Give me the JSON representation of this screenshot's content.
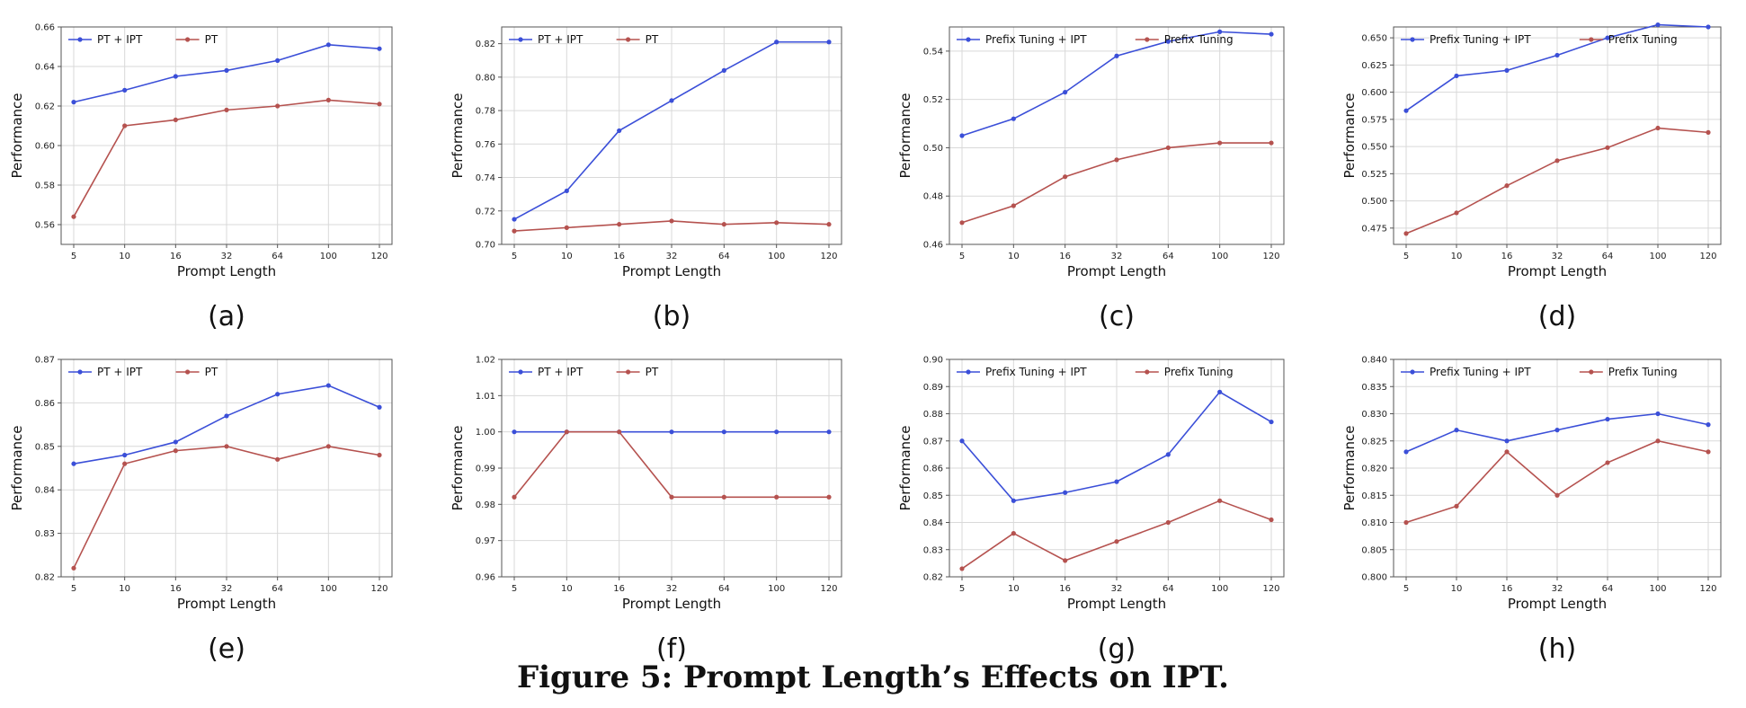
{
  "figure": {
    "caption": "Figure 5: Prompt Length’s Effects on IPT."
  },
  "colors": {
    "blue": "#3b4fd8",
    "red": "#b5524f",
    "grid": "#d9d9d9",
    "frame": "#555555"
  },
  "chart_data": [
    {
      "type": "line",
      "panel_label": "(a)",
      "categories": [
        "5",
        "10",
        "16",
        "32",
        "64",
        "100",
        "120"
      ],
      "xlabel": "Prompt Length",
      "ylabel": "Performance",
      "ylim": [
        0.55,
        0.66
      ],
      "yticks": [
        "0.56",
        "0.58",
        "0.60",
        "0.62",
        "0.64",
        "0.66"
      ],
      "legend": "top-left",
      "grid": true,
      "series": [
        {
          "name": "PT + IPT",
          "color": "#3b4fd8",
          "values": [
            0.622,
            0.628,
            0.635,
            0.638,
            0.643,
            0.651,
            0.649
          ]
        },
        {
          "name": "PT",
          "color": "#b5524f",
          "values": [
            0.564,
            0.61,
            0.613,
            0.618,
            0.62,
            0.623,
            0.621
          ]
        }
      ]
    },
    {
      "type": "line",
      "panel_label": "(b)",
      "categories": [
        "5",
        "10",
        "16",
        "32",
        "64",
        "100",
        "120"
      ],
      "xlabel": "Prompt Length",
      "ylabel": "Performance",
      "ylim": [
        0.7,
        0.83
      ],
      "yticks": [
        "0.70",
        "0.72",
        "0.74",
        "0.76",
        "0.78",
        "0.80",
        "0.82"
      ],
      "legend": "top-left",
      "grid": true,
      "series": [
        {
          "name": "PT + IPT",
          "color": "#3b4fd8",
          "values": [
            0.715,
            0.732,
            0.768,
            0.786,
            0.804,
            0.821,
            0.821
          ]
        },
        {
          "name": "PT",
          "color": "#b5524f",
          "values": [
            0.708,
            0.71,
            0.712,
            0.714,
            0.712,
            0.713,
            0.712
          ]
        }
      ]
    },
    {
      "type": "line",
      "panel_label": "(c)",
      "categories": [
        "5",
        "10",
        "16",
        "32",
        "64",
        "100",
        "120"
      ],
      "xlabel": "Prompt Length",
      "ylabel": "Performance",
      "ylim": [
        0.46,
        0.55
      ],
      "yticks": [
        "0.46",
        "0.48",
        "0.50",
        "0.52",
        "0.54"
      ],
      "legend": "top-left",
      "grid": true,
      "series": [
        {
          "name": "Prefix Tuning + IPT",
          "color": "#3b4fd8",
          "values": [
            0.505,
            0.512,
            0.523,
            0.538,
            0.544,
            0.548,
            0.547
          ]
        },
        {
          "name": "Prefix Tuning",
          "color": "#b5524f",
          "values": [
            0.469,
            0.476,
            0.488,
            0.495,
            0.5,
            0.502,
            0.502
          ]
        }
      ]
    },
    {
      "type": "line",
      "panel_label": "(d)",
      "categories": [
        "5",
        "10",
        "16",
        "32",
        "64",
        "100",
        "120"
      ],
      "xlabel": "Prompt Length",
      "ylabel": "Performance",
      "ylim": [
        0.46,
        0.66
      ],
      "yticks": [
        "0.475",
        "0.500",
        "0.525",
        "0.550",
        "0.575",
        "0.600",
        "0.625",
        "0.650"
      ],
      "legend": "top-left",
      "grid": true,
      "series": [
        {
          "name": "Prefix Tuning + IPT",
          "color": "#3b4fd8",
          "values": [
            0.583,
            0.615,
            0.62,
            0.634,
            0.65,
            0.662,
            0.66
          ]
        },
        {
          "name": "Prefix Tuning",
          "color": "#b5524f",
          "values": [
            0.47,
            0.489,
            0.514,
            0.537,
            0.549,
            0.567,
            0.563
          ]
        }
      ]
    },
    {
      "type": "line",
      "panel_label": "(e)",
      "categories": [
        "5",
        "10",
        "16",
        "32",
        "64",
        "100",
        "120"
      ],
      "xlabel": "Prompt Length",
      "ylabel": "Performance",
      "ylim": [
        0.82,
        0.87
      ],
      "yticks": [
        "0.82",
        "0.83",
        "0.84",
        "0.85",
        "0.86",
        "0.87"
      ],
      "legend": "top-left",
      "grid": true,
      "series": [
        {
          "name": "PT + IPT",
          "color": "#3b4fd8",
          "values": [
            0.846,
            0.848,
            0.851,
            0.857,
            0.862,
            0.864,
            0.859
          ]
        },
        {
          "name": "PT",
          "color": "#b5524f",
          "values": [
            0.822,
            0.846,
            0.849,
            0.85,
            0.847,
            0.85,
            0.848
          ]
        }
      ]
    },
    {
      "type": "line",
      "panel_label": "(f)",
      "categories": [
        "5",
        "10",
        "16",
        "32",
        "64",
        "100",
        "120"
      ],
      "xlabel": "Prompt Length",
      "ylabel": "Performance",
      "ylim": [
        0.96,
        1.02
      ],
      "yticks": [
        "0.96",
        "0.97",
        "0.98",
        "0.99",
        "1.00",
        "1.01",
        "1.02"
      ],
      "legend": "top-left",
      "grid": true,
      "series": [
        {
          "name": "PT + IPT",
          "color": "#3b4fd8",
          "values": [
            1.0,
            1.0,
            1.0,
            1.0,
            1.0,
            1.0,
            1.0
          ]
        },
        {
          "name": "PT",
          "color": "#b5524f",
          "values": [
            0.982,
            1.0,
            1.0,
            0.982,
            0.982,
            0.982,
            0.982
          ]
        }
      ]
    },
    {
      "type": "line",
      "panel_label": "(g)",
      "categories": [
        "5",
        "10",
        "16",
        "32",
        "64",
        "100",
        "120"
      ],
      "xlabel": "Prompt Length",
      "ylabel": "Performance",
      "ylim": [
        0.82,
        0.9
      ],
      "yticks": [
        "0.82",
        "0.83",
        "0.84",
        "0.85",
        "0.86",
        "0.87",
        "0.88",
        "0.89",
        "0.90"
      ],
      "legend": "top-left",
      "grid": true,
      "series": [
        {
          "name": "Prefix Tuning + IPT",
          "color": "#3b4fd8",
          "values": [
            0.87,
            0.848,
            0.851,
            0.855,
            0.865,
            0.888,
            0.877
          ]
        },
        {
          "name": "Prefix Tuning",
          "color": "#b5524f",
          "values": [
            0.823,
            0.836,
            0.826,
            0.833,
            0.84,
            0.848,
            0.841
          ]
        }
      ]
    },
    {
      "type": "line",
      "panel_label": "(h)",
      "categories": [
        "5",
        "10",
        "16",
        "32",
        "64",
        "100",
        "120"
      ],
      "xlabel": "Prompt Length",
      "ylabel": "Performance",
      "ylim": [
        0.8,
        0.84
      ],
      "yticks": [
        "0.800",
        "0.805",
        "0.810",
        "0.815",
        "0.820",
        "0.825",
        "0.830",
        "0.835",
        "0.840"
      ],
      "legend": "top-left",
      "grid": true,
      "series": [
        {
          "name": "Prefix Tuning + IPT",
          "color": "#3b4fd8",
          "values": [
            0.823,
            0.827,
            0.825,
            0.827,
            0.829,
            0.83,
            0.828
          ]
        },
        {
          "name": "Prefix Tuning",
          "color": "#b5524f",
          "values": [
            0.81,
            0.813,
            0.823,
            0.815,
            0.821,
            0.825,
            0.823
          ]
        }
      ]
    }
  ]
}
